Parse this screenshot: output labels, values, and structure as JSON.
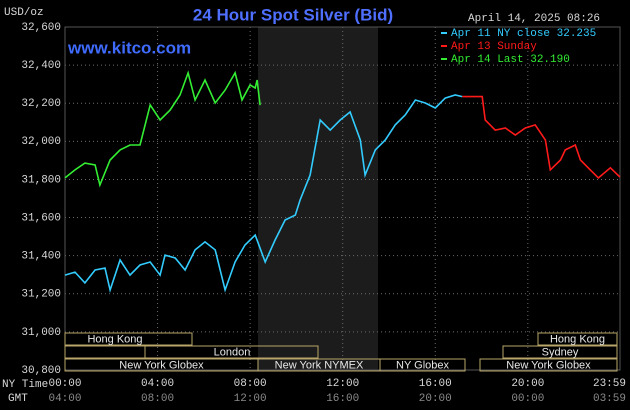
{
  "chart_data": {
    "type": "line",
    "title": "24 Hour Spot Silver (Bid)",
    "timestamp": "April 14, 2025 08:26",
    "y_label": "USD/oz",
    "watermark": "www.kitco.com",
    "x_row_labels": [
      "NY Time",
      "GMT"
    ],
    "xlim": [
      0,
      23.983
    ],
    "xticks": [
      {
        "value": 0,
        "label": "00:00"
      },
      {
        "value": 4,
        "label": "04:00"
      },
      {
        "value": 8,
        "label": "08:00"
      },
      {
        "value": 12,
        "label": "12:00"
      },
      {
        "value": 16,
        "label": "16:00"
      },
      {
        "value": 20,
        "label": "20:00"
      },
      {
        "value": 23.983,
        "label": "23:59"
      }
    ],
    "gmt_labels": [
      "04:00",
      "08:00",
      "12:00",
      "16:00",
      "20:00",
      "00:00",
      "03:59"
    ],
    "ylim": [
      30800,
      32600
    ],
    "yticks": [
      {
        "value": 30800,
        "label": "30,800"
      },
      {
        "value": 31000,
        "label": "31,000"
      },
      {
        "value": 31200,
        "label": "31,200"
      },
      {
        "value": 31400,
        "label": "31,400"
      },
      {
        "value": 31600,
        "label": "31,600"
      },
      {
        "value": 31800,
        "label": "31,800"
      },
      {
        "value": 32000,
        "label": "32,000"
      },
      {
        "value": 32200,
        "label": "32,200"
      },
      {
        "value": 32400,
        "label": "32,400"
      },
      {
        "value": 32600,
        "label": "32,600"
      }
    ],
    "grid": true,
    "series": [
      {
        "name": "Apr 11 NY close 32.235",
        "color": "#33ccff",
        "x": [
          0,
          0.43,
          0.86,
          1.3,
          1.73,
          1.95,
          2.38,
          2.81,
          3.24,
          3.68,
          4.11,
          4.32,
          4.76,
          5.19,
          5.62,
          6.05,
          6.49,
          6.92,
          7.35,
          7.78,
          8.22,
          8.65,
          9.08,
          9.51,
          9.95,
          10.16,
          10.59,
          11.03,
          11.46,
          11.89,
          12.32,
          12.76,
          12.97,
          13.41,
          13.84,
          14.27,
          14.7,
          15.14,
          15.57,
          16.0,
          16.43,
          16.86,
          17.17
        ],
        "values": [
          31298,
          31314,
          31257,
          31325,
          31335,
          31220,
          31377,
          31298,
          31351,
          31367,
          31298,
          31403,
          31388,
          31325,
          31430,
          31472,
          31430,
          31220,
          31367,
          31456,
          31508,
          31367,
          31482,
          31587,
          31613,
          31692,
          31823,
          32112,
          32059,
          32112,
          32154,
          32007,
          31823,
          31955,
          32007,
          32086,
          32138,
          32217,
          32201,
          32175,
          32227,
          32243,
          32235
        ]
      },
      {
        "name": "Apr 13 Sunday",
        "color": "#ff1a1a",
        "x": [
          17.17,
          18.03,
          18.16,
          18.59,
          19.03,
          19.46,
          19.89,
          20.32,
          20.76,
          20.97,
          21.41,
          21.62,
          22.05,
          22.27,
          22.7,
          23.05,
          23.57,
          23.98
        ],
        "values": [
          32235,
          32235,
          32112,
          32059,
          32070,
          32033,
          32070,
          32086,
          32007,
          31850,
          31902,
          31955,
          31981,
          31902,
          31850,
          31808,
          31861,
          31813
        ]
      },
      {
        "name": "Apr 14 Last 32.190",
        "color": "#33ee33",
        "x": [
          0,
          0.43,
          0.86,
          1.3,
          1.51,
          1.95,
          2.38,
          2.81,
          3.24,
          3.68,
          4.11,
          4.54,
          4.97,
          5.32,
          5.62,
          6.05,
          6.49,
          6.92,
          7.35,
          7.65,
          8.0,
          8.22,
          8.3,
          8.43
        ],
        "values": [
          31808,
          31850,
          31886,
          31876,
          31771,
          31902,
          31955,
          31981,
          31981,
          32191,
          32112,
          32164,
          32243,
          32359,
          32217,
          32322,
          32201,
          32269,
          32359,
          32217,
          32296,
          32280,
          32322,
          32190
        ]
      }
    ],
    "sessions": [
      "Hong Kong",
      "London",
      "New York Globex",
      "New York NYMEX",
      "NY Globex",
      "Hong Kong",
      "Sydney",
      "New York Globex"
    ]
  }
}
